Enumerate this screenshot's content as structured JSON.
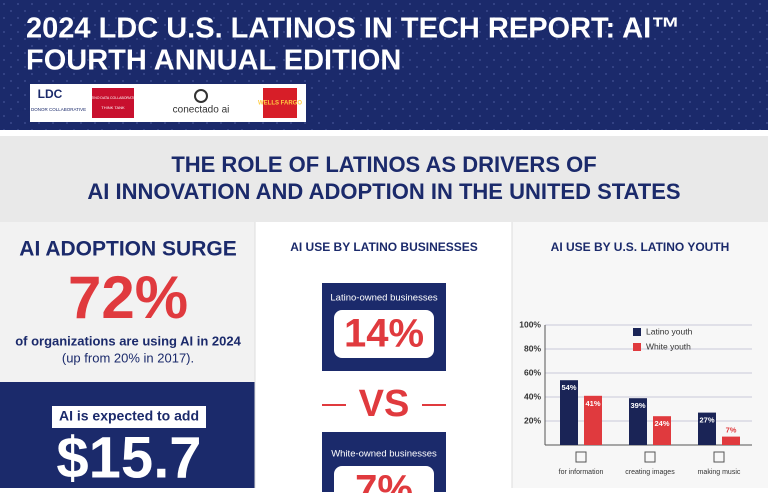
{
  "header": {
    "title_line1": "2024 LDC U.S. LATINOS IN TECH REPORT: AI™",
    "title_line2": "FOURTH ANNUAL EDITION",
    "logos": [
      "LDC",
      "LATINO DONOR COLLABORATIVE",
      "LATINO DATA COLLABORATIVE",
      "THINK TANK",
      "conectado ai",
      "WELLS FARGO"
    ]
  },
  "banner": {
    "line1": "THE ROLE OF LATINOS AS DRIVERS OF",
    "line2": "AI INNOVATION AND ADOPTION IN THE UNITED STATES"
  },
  "adoption": {
    "heading": "AI ADOPTION SURGE",
    "stat": "72%",
    "line1": "of organizations are using AI in 2024",
    "line2": "(up from 20% in 2017).",
    "expected": "AI is expected to add",
    "amount": "$15.7"
  },
  "businesses": {
    "heading": "AI USE BY LATINO BUSINESSES",
    "latino_label": "Latino-owned businesses",
    "latino_value": "14%",
    "vs": "VS",
    "white_label": "White-owned businesses",
    "white_value": "7%"
  },
  "chart_data": {
    "type": "bar",
    "title": "AI USE BY U.S. LATINO YOUTH",
    "categories": [
      "for information",
      "creating images",
      "making music"
    ],
    "series": [
      {
        "name": "Latino youth",
        "color": "#1a2456",
        "values": [
          54,
          39,
          27
        ],
        "value_labels": [
          "54%",
          "39%",
          "27%"
        ]
      },
      {
        "name": "White youth",
        "color": "#e03a3e",
        "values": [
          41,
          24,
          7
        ],
        "value_labels": [
          "41%",
          "24%",
          "7%"
        ]
      }
    ],
    "ylim": [
      0,
      100
    ],
    "yticks": [
      {
        "value": 20,
        "label": "20%"
      },
      {
        "value": 40,
        "label": "40%"
      },
      {
        "value": 60,
        "label": "60%"
      },
      {
        "value": 80,
        "label": "80%"
      },
      {
        "value": 100,
        "label": "100%"
      }
    ],
    "grid": true,
    "legend": "top"
  }
}
